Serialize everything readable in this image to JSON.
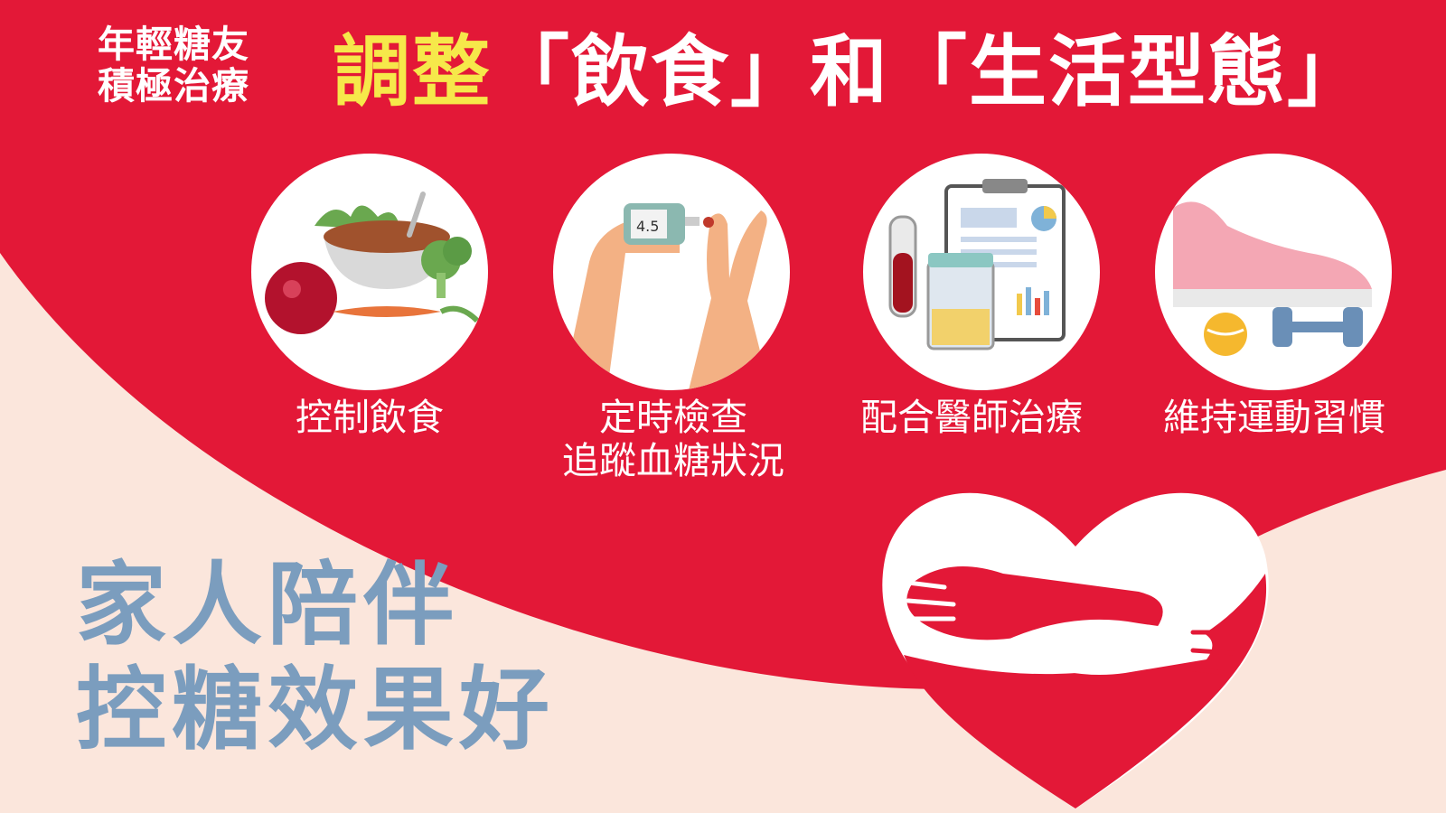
{
  "header": {
    "prefix_line1": "年輕糖友",
    "prefix_line2": "積極治療",
    "highlight": "調整",
    "rest": "「飲食」和「生活型態」"
  },
  "items": [
    {
      "label": "控制飲食",
      "label2": "",
      "icon": "food-icon"
    },
    {
      "label": "定時檢查",
      "label2": "追蹤血糖狀況",
      "icon": "glucose-meter-icon"
    },
    {
      "label": "配合醫師治療",
      "label2": "",
      "icon": "medical-report-icon"
    },
    {
      "label": "維持運動習慣",
      "label2": "",
      "icon": "sneaker-icon"
    }
  ],
  "bottom": {
    "line1": "家人陪伴",
    "line2": "控糖效果好"
  },
  "colors": {
    "red": "#e31837",
    "cream": "#fbe6dc",
    "yellow": "#f6e84a",
    "blue_gray": "#7b9dbe"
  }
}
